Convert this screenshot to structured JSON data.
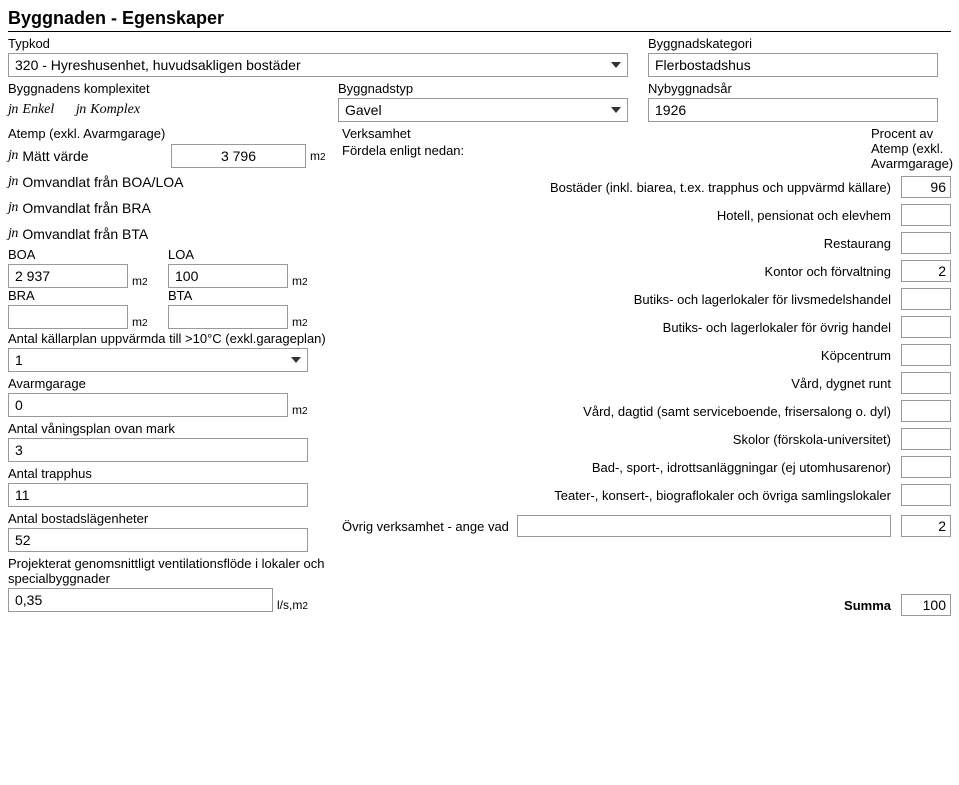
{
  "title": "Byggnaden - Egenskaper",
  "typkod": {
    "label": "Typkod",
    "value": "320 - Hyreshusenhet, huvudsakligen bostäder"
  },
  "kategori": {
    "label": "Byggnadskategori",
    "value": "Flerbostadshus"
  },
  "komplexitet": {
    "label": "Byggnadens komplexitet",
    "enkel": "Enkel",
    "komplex": "Komplex"
  },
  "byggnadstyp": {
    "label": "Byggnadstyp",
    "value": "Gavel"
  },
  "nyar": {
    "label": "Nybyggnadsår",
    "value": "1926"
  },
  "atemp": {
    "label": "Atemp (exkl. Avarmgarage)",
    "opt_matt": "Mätt värde",
    "opt_boa": "Omvandlat från BOA/LOA",
    "opt_bra": "Omvandlat från BRA",
    "opt_bta": "Omvandlat från BTA",
    "value": "3 796"
  },
  "boa": {
    "label": "BOA",
    "value": "2 937"
  },
  "loa": {
    "label": "LOA",
    "value": "100"
  },
  "bra": {
    "label": "BRA",
    "value": ""
  },
  "bta": {
    "label": "BTA",
    "value": ""
  },
  "kallarplan": {
    "label": "Antal källarplan uppvärmda till >10°C (exkl.garageplan)",
    "value": "1"
  },
  "avarmgarage": {
    "label": "Avarmgarage",
    "value": "0"
  },
  "vaningar": {
    "label": "Antal våningsplan ovan mark",
    "value": "3"
  },
  "trapphus": {
    "label": "Antal trapphus",
    "value": "11"
  },
  "lgh": {
    "label": "Antal bostadslägenheter",
    "value": "52"
  },
  "vent": {
    "label": "Projekterat genomsnittligt ventilationsflöde i lokaler och specialbyggnader",
    "value": "0,35",
    "unit": "l/s,m"
  },
  "verksamhet": {
    "heading": "Verksamhet",
    "sub": "Fördela enligt nedan:",
    "pct_label": "Procent av Atemp (exkl. Avarmgarage)",
    "rows": [
      {
        "label": "Bostäder (inkl. biarea, t.ex. trapphus och uppvärmd källare)",
        "value": "96"
      },
      {
        "label": "Hotell, pensionat och elevhem",
        "value": ""
      },
      {
        "label": "Restaurang",
        "value": ""
      },
      {
        "label": "Kontor och förvaltning",
        "value": "2"
      },
      {
        "label": "Butiks- och lagerlokaler för livsmedelshandel",
        "value": ""
      },
      {
        "label": "Butiks- och lagerlokaler för övrig handel",
        "value": ""
      },
      {
        "label": "Köpcentrum",
        "value": ""
      },
      {
        "label": "Vård, dygnet runt",
        "value": ""
      },
      {
        "label": "Vård, dagtid (samt serviceboende, frisersalong o. dyl)",
        "value": ""
      },
      {
        "label": "Skolor (förskola-universitet)",
        "value": ""
      },
      {
        "label": "Bad-, sport-, idrottsanläggningar (ej utomhusarenor)",
        "value": ""
      },
      {
        "label": "Teater-, konsert-, biograflokaler och övriga samlingslokaler",
        "value": ""
      }
    ],
    "ovrig": {
      "label": "Övrig verksamhet - ange vad",
      "value": "",
      "pct": "2"
    },
    "summa_label": "Summa",
    "summa": "100"
  },
  "m2": "m"
}
